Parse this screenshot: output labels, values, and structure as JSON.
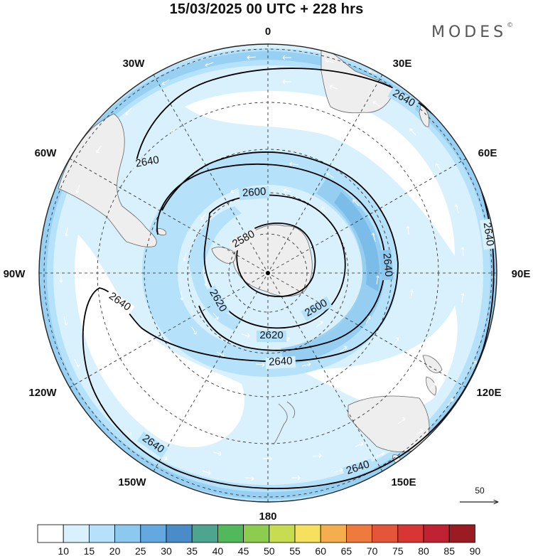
{
  "header": {
    "title": "15/03/2025  00 UTC  + 228 hrs",
    "logo": "MODES",
    "logo_mark": "©"
  },
  "map": {
    "projection": "south polar stereographic",
    "longitude_labels": [
      {
        "lon": 0,
        "label": "0"
      },
      {
        "lon": 30,
        "label": "30E"
      },
      {
        "lon": 60,
        "label": "60E"
      },
      {
        "lon": 90,
        "label": "90E"
      },
      {
        "lon": 120,
        "label": "120E"
      },
      {
        "lon": 150,
        "label": "150E"
      },
      {
        "lon": 180,
        "label": "180"
      },
      {
        "lon": -150,
        "label": "150W"
      },
      {
        "lon": -120,
        "label": "120W"
      },
      {
        "lon": -90,
        "label": "90W"
      },
      {
        "lon": -60,
        "label": "60W"
      },
      {
        "lon": -30,
        "label": "30W"
      }
    ],
    "contour_labels": [
      "2580",
      "2600",
      "2600",
      "2620",
      "2620",
      "2640",
      "2640",
      "2640",
      "2640",
      "2640",
      "2640",
      "2640"
    ],
    "reference_vector_label": "50",
    "colors": {
      "land": "#eeeeee",
      "coast": "#666666",
      "grid": "#222222",
      "contour": "#000000",
      "arrow": "#ffffff"
    }
  },
  "colorbar": {
    "ticks": [
      "10",
      "15",
      "20",
      "25",
      "30",
      "35",
      "40",
      "45",
      "50",
      "55",
      "60",
      "65",
      "70",
      "75",
      "80",
      "85",
      "90"
    ],
    "colors": [
      "#ffffff",
      "#d9f1fd",
      "#b5e2fa",
      "#8dc9ef",
      "#63a9e0",
      "#4a8cc8",
      "#4ea58f",
      "#52b85c",
      "#8ccc4e",
      "#c8dc52",
      "#f6e05e",
      "#f4ae4e",
      "#ee7a3e",
      "#e5553a",
      "#d83635",
      "#bf2332",
      "#9a1b22"
    ]
  }
}
